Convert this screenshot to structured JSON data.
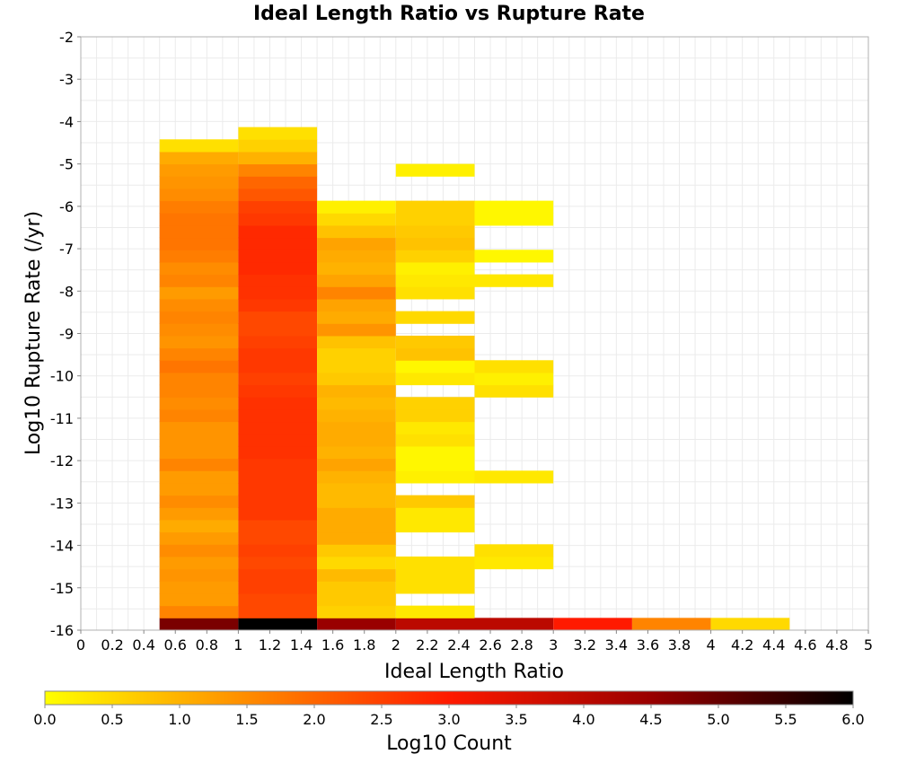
{
  "chart_data": {
    "type": "heatmap",
    "title": "Ideal Length Ratio vs Rupture Rate",
    "xlabel": "Ideal Length Ratio",
    "ylabel": "Log10 Rupture Rate (/yr)",
    "xlim": [
      0,
      5
    ],
    "ylim": [
      -16,
      -2
    ],
    "x_ticks": [
      "0",
      "0.2",
      "0.4",
      "0.6",
      "0.8",
      "1",
      "1.2",
      "1.4",
      "1.6",
      "1.8",
      "2",
      "2.2",
      "2.4",
      "2.6",
      "2.8",
      "3",
      "3.2",
      "3.4",
      "3.6",
      "3.8",
      "4",
      "4.2",
      "4.4",
      "4.6",
      "4.8",
      "5"
    ],
    "y_ticks": [
      "-2",
      "-3",
      "-4",
      "-5",
      "-6",
      "-7",
      "-8",
      "-9",
      "-10",
      "-11",
      "-12",
      "-13",
      "-14",
      "-15",
      "-16"
    ],
    "x_bin_width": 0.5,
    "y_bin_height": 0.2895,
    "y_bin_start": -16,
    "grid": true,
    "colorbar": {
      "label": "Log10 Count",
      "range": [
        0,
        6
      ],
      "ticks": [
        "0.0",
        "0.5",
        "1.0",
        "1.5",
        "2.0",
        "2.5",
        "3.0",
        "3.5",
        "4.0",
        "4.5",
        "5.0",
        "5.5",
        "6.0"
      ],
      "stops": [
        "#ffff00",
        "#ff8c00",
        "#ff1a00",
        "#990000",
        "#000000"
      ]
    },
    "columns": [
      {
        "x": 0.5,
        "start_bin": 0,
        "values": [
          4.8,
          1.6,
          1.3,
          1.3,
          1.4,
          1.3,
          1.5,
          1.3,
          1.1,
          1.3,
          1.5,
          1.3,
          1.3,
          1.6,
          1.4,
          1.4,
          1.4,
          1.6,
          1.5,
          1.6,
          1.6,
          1.8,
          1.6,
          1.4,
          1.5,
          1.6,
          1.5,
          1.3,
          1.6,
          1.5,
          1.7,
          1.8,
          1.8,
          1.8,
          1.7,
          1.5,
          1.4,
          1.3,
          1.1,
          0.4
        ]
      },
      {
        "x": 1.0,
        "start_bin": 0,
        "values": [
          6.0,
          2.4,
          2.4,
          2.5,
          2.5,
          2.4,
          2.5,
          2.4,
          2.4,
          2.6,
          2.6,
          2.6,
          2.6,
          2.6,
          2.7,
          2.7,
          2.7,
          2.7,
          2.7,
          2.6,
          2.5,
          2.6,
          2.6,
          2.5,
          2.4,
          2.4,
          2.6,
          2.7,
          2.7,
          2.8,
          2.8,
          2.8,
          2.8,
          2.6,
          2.5,
          2.2,
          2.0,
          1.6,
          1.0,
          0.6,
          0.4
        ]
      },
      {
        "x": 1.5,
        "start_bin": 0,
        "values": [
          4.5,
          0.6,
          0.7,
          0.7,
          0.9,
          0.5,
          0.7,
          1.1,
          1.1,
          1.1,
          0.9,
          0.9,
          1.0,
          1.2,
          1.0,
          1.1,
          1.1,
          1.0,
          0.9,
          1.0,
          0.7,
          0.6,
          0.6,
          0.8,
          1.4,
          1.1,
          1.2,
          1.6,
          1.2,
          1.0,
          1.1,
          1.2,
          0.8,
          0.5,
          0.2
        ]
      },
      {
        "x": 2.0,
        "start_bin": 0,
        "values": [
          4.0,
          0.3,
          null,
          0.4,
          0.4,
          0.4,
          null,
          null,
          0.3,
          0.3,
          0.7,
          null,
          0.2,
          0.1,
          0.1,
          0.4,
          0.3,
          0.6,
          0.6,
          null,
          0.3,
          0.1,
          0.8,
          0.7,
          null,
          0.5,
          null,
          0.4,
          0.3,
          0.2,
          0.6,
          0.8,
          0.7,
          0.6,
          0.6,
          null,
          null,
          0.2
        ]
      },
      {
        "x": 2.5,
        "start_bin": 0,
        "values": [
          4.0,
          null,
          null,
          null,
          null,
          0.3,
          0.4,
          null,
          null,
          null,
          null,
          null,
          0.3,
          null,
          null,
          null,
          null,
          null,
          null,
          0.4,
          0.2,
          0.4,
          null,
          null,
          null,
          null,
          null,
          null,
          0.3,
          null,
          0.1,
          null,
          null,
          0.1,
          0.1
        ]
      },
      {
        "x": 3.0,
        "start_bin": 0,
        "values": [
          3.0
        ]
      },
      {
        "x": 3.5,
        "start_bin": 0,
        "values": [
          1.6
        ]
      },
      {
        "x": 4.0,
        "start_bin": 0,
        "values": [
          0.5
        ]
      }
    ]
  }
}
